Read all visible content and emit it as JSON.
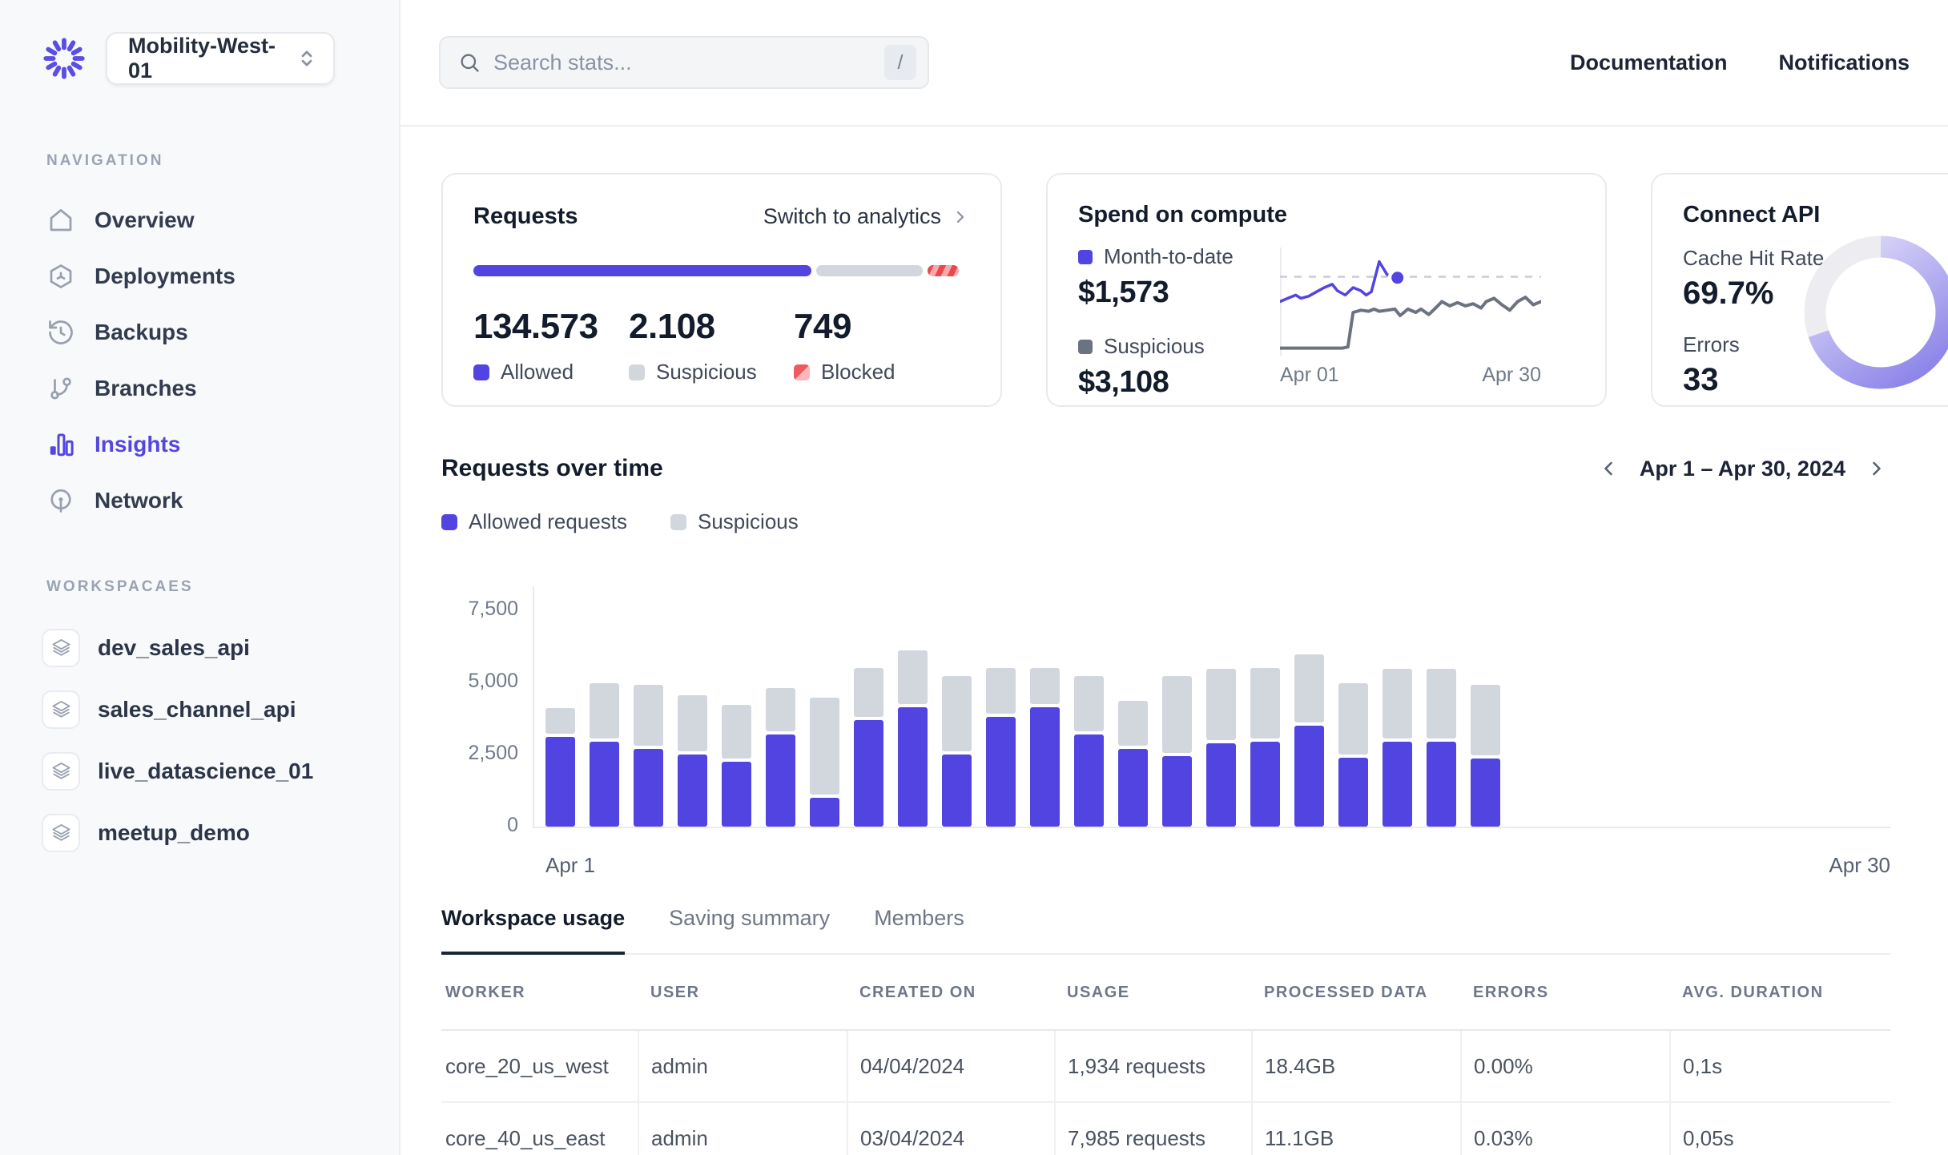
{
  "app": {
    "accent_color": "#5244e1"
  },
  "sidebar": {
    "workspace_selector": {
      "value": "Mobility-West-01"
    },
    "nav_section_label": "NAVIGATION",
    "nav_items": [
      {
        "label": "Overview",
        "icon": "home-icon",
        "active": false
      },
      {
        "label": "Deployments",
        "icon": "package-icon",
        "active": false
      },
      {
        "label": "Backups",
        "icon": "history-icon",
        "active": false
      },
      {
        "label": "Branches",
        "icon": "git-branch-icon",
        "active": false
      },
      {
        "label": "Insights",
        "icon": "bar-chart-icon",
        "active": true
      },
      {
        "label": "Network",
        "icon": "broadcast-icon",
        "active": false
      }
    ],
    "workspaces_section_label": "WORKSPACAES",
    "workspace_items": [
      {
        "label": "dev_sales_api",
        "icon": "layers-icon"
      },
      {
        "label": "sales_channel_api",
        "icon": "layers-icon"
      },
      {
        "label": "live_datascience_01",
        "icon": "layers-icon"
      },
      {
        "label": "meetup_demo",
        "icon": "layers-icon"
      }
    ]
  },
  "topbar": {
    "search_placeholder": "Search stats...",
    "search_shortcut": "/",
    "links": [
      {
        "label": "Documentation"
      },
      {
        "label": "Notifications"
      }
    ]
  },
  "cards": {
    "requests": {
      "title": "Requests",
      "link_label": "Switch to analytics",
      "progress_segments_pct": [
        68,
        21.5,
        6.3
      ],
      "stats": [
        {
          "value": "134.573",
          "label": "Allowed",
          "color": "#5244e1"
        },
        {
          "value": "2.108",
          "label": "Suspicious",
          "color": "#d2d6dd"
        },
        {
          "value": "749",
          "label": "Blocked",
          "color": "#ee5a60"
        }
      ]
    },
    "spend": {
      "title": "Spend on compute",
      "metrics": [
        {
          "label": "Month-to-date",
          "value": "$1,573",
          "color": "#5244e1"
        },
        {
          "label": "Suspicious",
          "value": "$3,108",
          "color": "#6b7280"
        }
      ],
      "x_labels": [
        "Apr 01",
        "Apr 30"
      ]
    },
    "connect": {
      "title": "Connect API",
      "metrics": [
        {
          "label": "Cache Hit Rate",
          "value": "69.7%"
        },
        {
          "label": "Errors",
          "value": "33"
        }
      ],
      "donut_pct": 69.7
    }
  },
  "requests_over_time": {
    "title": "Requests over time",
    "legend": [
      {
        "label": "Allowed requests",
        "color": "#5244e1"
      },
      {
        "label": "Suspicious",
        "color": "#d2d6dd"
      }
    ],
    "date_range": "Apr 1 – Apr 30, 2024",
    "y_ticks": [
      "7,500",
      "5,000",
      "2,500",
      "0"
    ],
    "x_labels": [
      "Apr 1",
      "Apr 30"
    ]
  },
  "tabs": [
    {
      "label": "Workspace usage",
      "active": true
    },
    {
      "label": "Saving summary",
      "active": false
    },
    {
      "label": "Members",
      "active": false
    }
  ],
  "table": {
    "columns": [
      "WORKER",
      "USER",
      "CREATED ON",
      "USAGE",
      "PROCESSED DATA",
      "ERRORS",
      "AVG. DURATION"
    ],
    "rows": [
      [
        "core_20_us_west",
        "admin",
        "04/04/2024",
        "1,934 requests",
        "18.4GB",
        "0.00%",
        "0,1s"
      ],
      [
        "core_40_us_east",
        "admin",
        "03/04/2024",
        "7,985 requests",
        "11.1GB",
        "0.03%",
        "0,05s"
      ]
    ]
  },
  "chart_data": [
    {
      "type": "bar",
      "stacked": true,
      "title": "Requests over time",
      "x_unit": "day of April 2024",
      "days": [
        1,
        2,
        3,
        4,
        5,
        6,
        7,
        8,
        9,
        10,
        11,
        12,
        13,
        14,
        15,
        16,
        17,
        18,
        19,
        20,
        21,
        22
      ],
      "series": [
        {
          "name": "Allowed requests",
          "color": "#5244e1",
          "values": [
            3100,
            2950,
            2700,
            2500,
            2250,
            3200,
            1000,
            3700,
            4150,
            2500,
            3800,
            4150,
            3200,
            2700,
            2450,
            2900,
            2950,
            3500,
            2400,
            2950,
            2950,
            2350
          ]
        },
        {
          "name": "Suspicious",
          "color": "#d2d6dd",
          "values": [
            900,
            1900,
            2100,
            1950,
            1850,
            1500,
            3350,
            1700,
            1850,
            2600,
            1600,
            1250,
            1900,
            1550,
            2650,
            2450,
            2450,
            2350,
            2450,
            2400,
            2400,
            2450
          ]
        }
      ],
      "ylim": [
        0,
        7500
      ],
      "yticks": [
        0,
        2500,
        5000,
        7500
      ],
      "grid": false,
      "legend_position": "top-left",
      "x_axis_range_labels": [
        "Apr 1",
        "Apr 30"
      ],
      "note": "bars shown for Apr 1-22 only; axis extends empty to Apr 30"
    },
    {
      "type": "line",
      "title": "Spend on compute (sparkline, normalized pct coords, y from top)",
      "x_range_labels": [
        "Apr 01",
        "Apr 30"
      ],
      "ref_line_pct": 27,
      "series": [
        {
          "name": "Month-to-date",
          "color": "#5244e1",
          "end_dot": true,
          "points_pct": [
            [
              0,
              50
            ],
            [
              3,
              47
            ],
            [
              6,
              44
            ],
            [
              8,
              47
            ],
            [
              11,
              45
            ],
            [
              14,
              41
            ],
            [
              17,
              37
            ],
            [
              20,
              34
            ],
            [
              22,
              40
            ],
            [
              25,
              44
            ],
            [
              28,
              37
            ],
            [
              31,
              40
            ],
            [
              33,
              44
            ],
            [
              35,
              41
            ],
            [
              38,
              13
            ],
            [
              41,
              25
            ],
            [
              45,
              28
            ]
          ]
        },
        {
          "name": "Suspicious",
          "color": "#6b7280",
          "points_pct": [
            [
              0,
              93
            ],
            [
              6,
              93
            ],
            [
              12,
              93
            ],
            [
              18,
              93
            ],
            [
              24,
              93
            ],
            [
              26,
              92
            ],
            [
              28,
              60
            ],
            [
              31,
              58
            ],
            [
              34,
              59
            ],
            [
              36,
              57
            ],
            [
              38,
              59
            ],
            [
              41,
              58
            ],
            [
              44,
              57
            ],
            [
              46,
              63
            ],
            [
              49,
              57
            ],
            [
              52,
              60
            ],
            [
              54,
              57
            ],
            [
              57,
              62
            ],
            [
              60,
              55
            ],
            [
              62,
              50
            ],
            [
              65,
              54
            ],
            [
              68,
              51
            ],
            [
              71,
              54
            ],
            [
              74,
              52
            ],
            [
              77,
              56
            ],
            [
              79,
              50
            ],
            [
              82,
              47
            ],
            [
              85,
              53
            ],
            [
              88,
              58
            ],
            [
              91,
              50
            ],
            [
              94,
              46
            ],
            [
              97,
              53
            ],
            [
              100,
              50
            ]
          ]
        }
      ]
    },
    {
      "type": "donut",
      "title": "Connect API cache hit rate",
      "value_pct": 69.7,
      "colors": {
        "arc_from": "#e0dcf9",
        "arc_to": "#8a82e8",
        "track": "#ededf1"
      }
    }
  ]
}
